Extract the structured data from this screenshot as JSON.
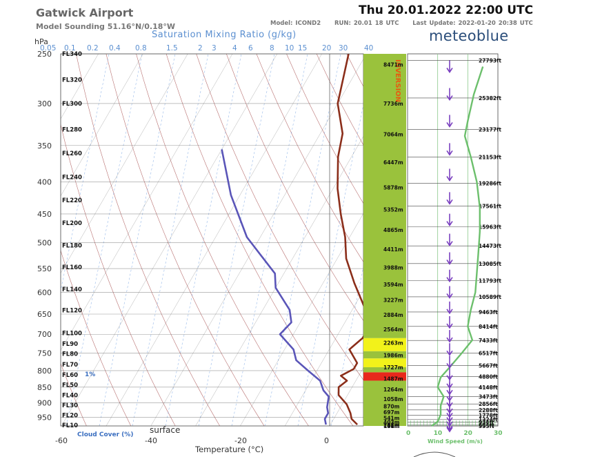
{
  "header": {
    "station": "Gatwick Airport",
    "subtitle": "Model Sounding  51.16°N/0.18°W",
    "datetime": "Thu 20.01.2022  22:00 UTC",
    "model": "Model: ICOND2",
    "run": "RUN: 20.01 18 UTC",
    "last_update": "Last Update: 2022-01-20 20:38 UTC",
    "brand": "meteoblue"
  },
  "colors": {
    "temperature": "#8b2e1a",
    "dewpoint": "#5a55b8",
    "wind_speed": "#6cbf6c",
    "wind_barb": "#7a3fbf",
    "cloud_green": "#9ac23c",
    "cloud_yellow": "#f2f21a",
    "cloud_red": "#e8281c",
    "sat_line": "#6a9be0",
    "dry_adiabat": "#a04040",
    "isotherm": "#555555"
  },
  "chart_data": [
    {
      "type": "line",
      "title": "",
      "xlabel": "Temperature (°C)",
      "ylabel": "hPa",
      "top_label": "Saturation Mixing Ratio (g/kg)",
      "xlim": [
        -60,
        10
      ],
      "ylim": [
        980,
        250
      ],
      "y_ticks": [
        250,
        300,
        350,
        400,
        450,
        500,
        550,
        600,
        650,
        700,
        750,
        800,
        850,
        900,
        950
      ],
      "x_ticks": [
        -60,
        -40,
        -20,
        0
      ],
      "mixing_ratio_ticks": [
        "0.05",
        "0.1",
        "0.2",
        "0.4",
        "0.8",
        "1.5",
        "2",
        "3",
        "4",
        "6",
        "8",
        "10",
        "15",
        "20",
        "30",
        "40"
      ],
      "flight_levels": [
        {
          "label": "FL340",
          "p": 250
        },
        {
          "label": "FL320",
          "p": 275
        },
        {
          "label": "FL300",
          "p": 300
        },
        {
          "label": "FL280",
          "p": 330
        },
        {
          "label": "FL260",
          "p": 360
        },
        {
          "label": "FL240",
          "p": 393
        },
        {
          "label": "FL220",
          "p": 428
        },
        {
          "label": "FL200",
          "p": 465
        },
        {
          "label": "FL180",
          "p": 505
        },
        {
          "label": "FL160",
          "p": 547
        },
        {
          "label": "FL140",
          "p": 593
        },
        {
          "label": "FL120",
          "p": 641
        },
        {
          "label": "FL100",
          "p": 697
        },
        {
          "label": "FL90",
          "p": 725
        },
        {
          "label": "FL80",
          "p": 752
        },
        {
          "label": "FL70",
          "p": 782
        },
        {
          "label": "FL60",
          "p": 812
        },
        {
          "label": "FL50",
          "p": 843
        },
        {
          "label": "FL40",
          "p": 875
        },
        {
          "label": "FL30",
          "p": 908
        },
        {
          "label": "FL20",
          "p": 942
        },
        {
          "label": "FL10",
          "p": 977
        }
      ],
      "series": [
        {
          "name": "temperature",
          "points": [
            [
              -44,
              250
            ],
            [
              -40,
              300
            ],
            [
              -35,
              335
            ],
            [
              -33,
              365
            ],
            [
              -29,
              410
            ],
            [
              -25,
              450
            ],
            [
              -21,
              490
            ],
            [
              -18,
              530
            ],
            [
              -13,
              580
            ],
            [
              -7,
              640
            ],
            [
              -4,
              680
            ],
            [
              -4,
              710
            ],
            [
              -5.5,
              740
            ],
            [
              -2,
              778
            ],
            [
              -2,
              795
            ],
            [
              -4,
              815
            ],
            [
              -2,
              830
            ],
            [
              -3,
              850
            ],
            [
              -2,
              875
            ],
            [
              1,
              905
            ],
            [
              3,
              935
            ],
            [
              4,
              955
            ],
            [
              6,
              975
            ]
          ]
        },
        {
          "name": "dewpoint",
          "points": [
            [
              -60,
              355
            ],
            [
              -52,
              420
            ],
            [
              -43,
              490
            ],
            [
              -32,
              560
            ],
            [
              -30,
              590
            ],
            [
              -24,
              640
            ],
            [
              -22,
              670
            ],
            [
              -23,
              700
            ],
            [
              -18,
              740
            ],
            [
              -16,
              770
            ],
            [
              -12,
              800
            ],
            [
              -8,
              830
            ],
            [
              -6,
              860
            ],
            [
              -4,
              880
            ],
            [
              -3,
              915
            ],
            [
              -2,
              935
            ],
            [
              -2,
              955
            ],
            [
              -1,
              975
            ]
          ]
        }
      ],
      "annotations": {
        "cloud_cover_label": "Cloud Cover (%)",
        "cloud_cover_value": "1%",
        "surface_label": "surface"
      }
    },
    {
      "type": "line",
      "title": "",
      "xlabel": "Wind Speed (m/s)",
      "xlim": [
        0,
        30
      ],
      "x_ticks": [
        0,
        10,
        20,
        30
      ],
      "ylim": [
        980,
        250
      ],
      "height_labels_m": [
        {
          "label": "8471m",
          "p": 260
        },
        {
          "label": "7736m",
          "p": 300
        },
        {
          "label": "7064m",
          "p": 336
        },
        {
          "label": "6447m",
          "p": 372
        },
        {
          "label": "5878m",
          "p": 408
        },
        {
          "label": "5352m",
          "p": 443
        },
        {
          "label": "4865m",
          "p": 477
        },
        {
          "label": "4411m",
          "p": 512
        },
        {
          "label": "3988m",
          "p": 548
        },
        {
          "label": "3594m",
          "p": 583
        },
        {
          "label": "3227m",
          "p": 617
        },
        {
          "label": "2884m",
          "p": 652
        },
        {
          "label": "2564m",
          "p": 687
        },
        {
          "label": "2263m",
          "p": 722
        },
        {
          "label": "1986m",
          "p": 756
        },
        {
          "label": "1727m",
          "p": 790
        },
        {
          "label": "1487m",
          "p": 824
        },
        {
          "label": "1264m",
          "p": 857
        },
        {
          "label": "1058m",
          "p": 888
        },
        {
          "label": "870m",
          "p": 912
        },
        {
          "label": "697m",
          "p": 932
        },
        {
          "label": "541m",
          "p": 952
        },
        {
          "label": "403m",
          "p": 966
        },
        {
          "label": "288m",
          "p": 976
        },
        {
          "label": "184m",
          "p": 985
        },
        {
          "label": "101m",
          "p": 992
        }
      ],
      "height_labels_ft": [
        {
          "label": "27793ft",
          "p": 256
        },
        {
          "label": "25382ft",
          "p": 294
        },
        {
          "label": "23177ft",
          "p": 330
        },
        {
          "label": "21153ft",
          "p": 365
        },
        {
          "label": "19286ft",
          "p": 402
        },
        {
          "label": "17561ft",
          "p": 437
        },
        {
          "label": "15963ft",
          "p": 472
        },
        {
          "label": "14473ft",
          "p": 506
        },
        {
          "label": "13085ft",
          "p": 540
        },
        {
          "label": "11793ft",
          "p": 575
        },
        {
          "label": "10589ft",
          "p": 610
        },
        {
          "label": "9463ft",
          "p": 645
        },
        {
          "label": "8414ft",
          "p": 680
        },
        {
          "label": "7433ft",
          "p": 716
        },
        {
          "label": "6517ft",
          "p": 750
        },
        {
          "label": "5667ft",
          "p": 785
        },
        {
          "label": "4880ft",
          "p": 818
        },
        {
          "label": "4148ft",
          "p": 850
        },
        {
          "label": "3473ft",
          "p": 880
        },
        {
          "label": "2856ft",
          "p": 904
        },
        {
          "label": "2288ft",
          "p": 924
        },
        {
          "label": "1778ft",
          "p": 942
        },
        {
          "label": "1324ft",
          "p": 957
        },
        {
          "label": "934ft",
          "p": 967
        },
        {
          "label": "604ft",
          "p": 976
        },
        {
          "label": "333ft",
          "p": 986
        }
      ],
      "series": [
        {
          "name": "wind_speed",
          "points": [
            [
              25,
              262
            ],
            [
              22,
              290
            ],
            [
              20,
              320
            ],
            [
              19,
              338
            ],
            [
              21,
              365
            ],
            [
              23,
              400
            ],
            [
              24,
              440
            ],
            [
              24,
              480
            ],
            [
              23.5,
              520
            ],
            [
              23,
              560
            ],
            [
              22.5,
              600
            ],
            [
              21,
              640
            ],
            [
              20,
              680
            ],
            [
              21.5,
              715
            ],
            [
              18,
              750
            ],
            [
              14,
              790
            ],
            [
              11,
              820
            ],
            [
              10,
              850
            ],
            [
              12,
              880
            ],
            [
              11,
              910
            ],
            [
              11,
              940
            ],
            [
              10,
              965
            ],
            [
              8,
              985
            ]
          ]
        }
      ],
      "wind_barbs_p": [
        262,
        290,
        320,
        355,
        390,
        425,
        460,
        495,
        530,
        565,
        600,
        635,
        670,
        705,
        740,
        775,
        810,
        835,
        855,
        875,
        895,
        915,
        930,
        945,
        960,
        975,
        985
      ],
      "cloud_layers": [
        {
          "from": 250,
          "to": 710,
          "cover": "green"
        },
        {
          "from": 710,
          "to": 745,
          "cover": "yellow"
        },
        {
          "from": 745,
          "to": 765,
          "cover": "green"
        },
        {
          "from": 765,
          "to": 790,
          "cover": "yellow"
        },
        {
          "from": 790,
          "to": 805,
          "cover": "green"
        },
        {
          "from": 805,
          "to": 830,
          "cover": "red"
        },
        {
          "from": 830,
          "to": 985,
          "cover": "green"
        }
      ],
      "annotations": {
        "inversion_label": "INVERSION"
      }
    }
  ]
}
